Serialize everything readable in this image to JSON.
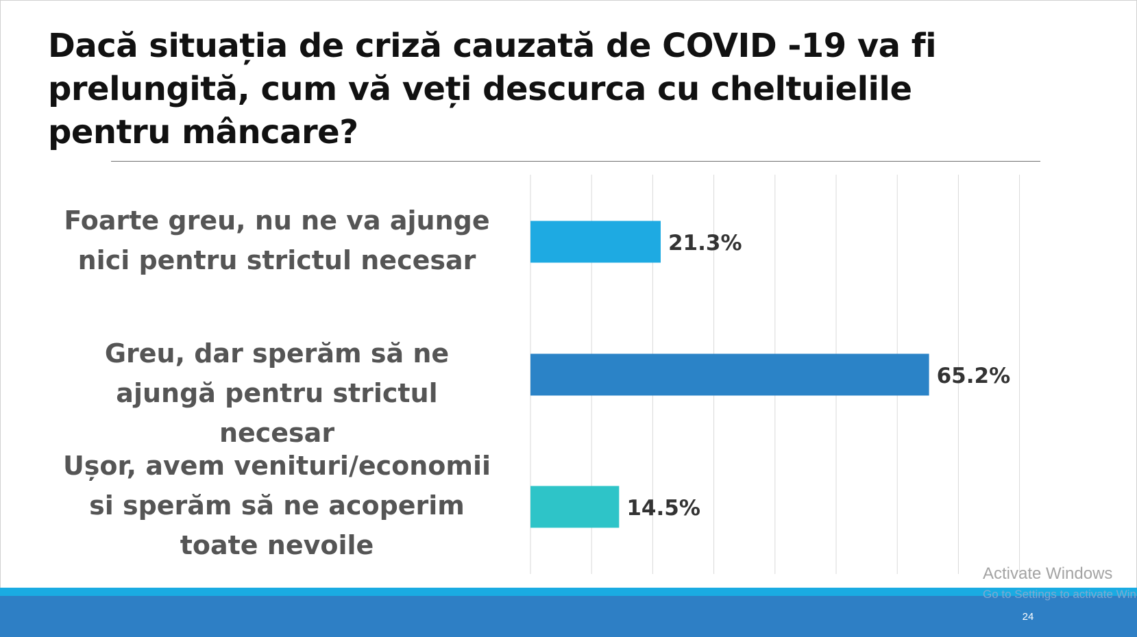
{
  "slide": {
    "page_number": "24",
    "watermark_title": "Activate Windows",
    "watermark_subtitle": "Go to Settings to activate Windows."
  },
  "colors": {
    "title": "#111111",
    "category_label": "#555555",
    "value_label": "#333333",
    "gridline": "#d9d9d9",
    "footer_strip": "#1aabe2",
    "footer_band": "#2e7fc5"
  },
  "chart_data": {
    "type": "bar",
    "orientation": "horizontal",
    "title": "Dacă situația de criză cauzată de COVID -19 va fi prelungită, cum vă veți descurca cu cheltuielile pentru mâncare?",
    "categories": [
      "Foarte greu, nu ne va ajunge nici pentru strictul necesar",
      "Greu, dar sperăm să ne ajungă pentru strictul necesar",
      "Ușor, avem venituri/economii si sperăm să ne acoperim toate nevoile"
    ],
    "values": [
      21.3,
      65.2,
      14.5
    ],
    "value_labels": [
      "21.3%",
      "65.2%",
      "14.5%"
    ],
    "bar_colors": [
      "#1eaae2",
      "#2b83c7",
      "#2ec4c8"
    ],
    "xlim": [
      0,
      80
    ],
    "x_gridline_step": 10,
    "grid": true,
    "legend": "none",
    "xlabel": "",
    "ylabel": ""
  }
}
